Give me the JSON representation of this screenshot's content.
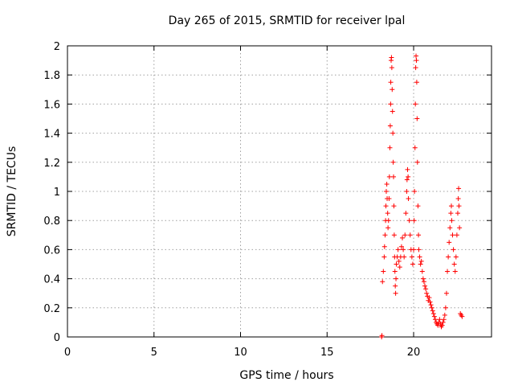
{
  "chart_data": {
    "type": "scatter",
    "title": "Day 265 of 2015, SRMTID for receiver lpal",
    "xlabel": "GPS time / hours",
    "ylabel": "SRMTID / TECUs",
    "xlim": [
      0,
      24.5
    ],
    "ylim": [
      0,
      2
    ],
    "xticks": [
      0,
      5,
      10,
      15,
      20
    ],
    "xtick_labels": [
      "0",
      "5",
      "10",
      "15",
      "20"
    ],
    "yticks": [
      0,
      0.2,
      0.4,
      0.6,
      0.8,
      1,
      1.2,
      1.4,
      1.6,
      1.8,
      2
    ],
    "ytick_labels": [
      "0",
      "0.2",
      "0.4",
      "0.6",
      "0.8",
      "1",
      "1.2",
      "1.4",
      "1.6",
      "1.8",
      "2"
    ],
    "grid": true,
    "marker": "+",
    "series": [
      {
        "name": "SRMTID",
        "color": "#ff0000",
        "points": [
          [
            18.15,
            0.0
          ],
          [
            18.17,
            0.01
          ],
          [
            18.2,
            0.38
          ],
          [
            18.25,
            0.45
          ],
          [
            18.3,
            0.55
          ],
          [
            18.32,
            0.62
          ],
          [
            18.35,
            0.7
          ],
          [
            18.38,
            0.8
          ],
          [
            18.4,
            0.9
          ],
          [
            18.42,
            1.0
          ],
          [
            18.45,
            1.05
          ],
          [
            18.47,
            0.95
          ],
          [
            18.5,
            0.85
          ],
          [
            18.52,
            0.75
          ],
          [
            18.55,
            0.8
          ],
          [
            18.58,
            0.95
          ],
          [
            18.6,
            1.1
          ],
          [
            18.63,
            1.3
          ],
          [
            18.65,
            1.45
          ],
          [
            18.67,
            1.6
          ],
          [
            18.68,
            1.75
          ],
          [
            18.7,
            1.9
          ],
          [
            18.72,
            1.92
          ],
          [
            18.74,
            1.85
          ],
          [
            18.76,
            1.7
          ],
          [
            18.78,
            1.55
          ],
          [
            18.8,
            1.4
          ],
          [
            18.82,
            1.2
          ],
          [
            18.84,
            1.1
          ],
          [
            18.86,
            0.9
          ],
          [
            18.88,
            0.7
          ],
          [
            18.9,
            0.55
          ],
          [
            18.92,
            0.45
          ],
          [
            18.94,
            0.35
          ],
          [
            18.96,
            0.3
          ],
          [
            18.98,
            0.4
          ],
          [
            19.0,
            0.5
          ],
          [
            19.05,
            0.55
          ],
          [
            19.1,
            0.6
          ],
          [
            19.15,
            0.52
          ],
          [
            19.2,
            0.48
          ],
          [
            19.25,
            0.55
          ],
          [
            19.3,
            0.62
          ],
          [
            19.35,
            0.68
          ],
          [
            19.4,
            0.6
          ],
          [
            19.45,
            0.55
          ],
          [
            19.5,
            0.7
          ],
          [
            19.55,
            0.85
          ],
          [
            19.6,
            1.0
          ],
          [
            19.62,
            1.08
          ],
          [
            19.65,
            1.15
          ],
          [
            19.68,
            1.1
          ],
          [
            19.7,
            0.95
          ],
          [
            19.75,
            0.8
          ],
          [
            19.8,
            0.7
          ],
          [
            19.85,
            0.6
          ],
          [
            19.9,
            0.55
          ],
          [
            19.95,
            0.5
          ],
          [
            20.0,
            0.6
          ],
          [
            20.03,
            0.8
          ],
          [
            20.05,
            1.0
          ],
          [
            20.08,
            1.3
          ],
          [
            20.1,
            1.6
          ],
          [
            20.12,
            1.85
          ],
          [
            20.14,
            1.93
          ],
          [
            20.16,
            1.9
          ],
          [
            20.18,
            1.75
          ],
          [
            20.2,
            1.5
          ],
          [
            20.22,
            1.2
          ],
          [
            20.25,
            0.9
          ],
          [
            20.28,
            0.7
          ],
          [
            20.3,
            0.6
          ],
          [
            20.35,
            0.55
          ],
          [
            20.4,
            0.5
          ],
          [
            20.45,
            0.52
          ],
          [
            20.5,
            0.45
          ],
          [
            20.55,
            0.4
          ],
          [
            20.6,
            0.38
          ],
          [
            20.65,
            0.35
          ],
          [
            20.7,
            0.33
          ],
          [
            20.75,
            0.3
          ],
          [
            20.8,
            0.28
          ],
          [
            20.85,
            0.25
          ],
          [
            20.9,
            0.27
          ],
          [
            20.95,
            0.24
          ],
          [
            21.0,
            0.22
          ],
          [
            21.05,
            0.2
          ],
          [
            21.1,
            0.18
          ],
          [
            21.15,
            0.16
          ],
          [
            21.2,
            0.14
          ],
          [
            21.25,
            0.12
          ],
          [
            21.3,
            0.1
          ],
          [
            21.35,
            0.09
          ],
          [
            21.4,
            0.08
          ],
          [
            21.45,
            0.1
          ],
          [
            21.5,
            0.12
          ],
          [
            21.55,
            0.09
          ],
          [
            21.6,
            0.07
          ],
          [
            21.65,
            0.08
          ],
          [
            21.7,
            0.1
          ],
          [
            21.75,
            0.12
          ],
          [
            21.8,
            0.15
          ],
          [
            21.85,
            0.2
          ],
          [
            21.9,
            0.3
          ],
          [
            21.95,
            0.45
          ],
          [
            22.0,
            0.55
          ],
          [
            22.05,
            0.65
          ],
          [
            22.1,
            0.75
          ],
          [
            22.15,
            0.85
          ],
          [
            22.18,
            0.9
          ],
          [
            22.2,
            0.8
          ],
          [
            22.25,
            0.7
          ],
          [
            22.3,
            0.6
          ],
          [
            22.35,
            0.5
          ],
          [
            22.4,
            0.45
          ],
          [
            22.45,
            0.55
          ],
          [
            22.5,
            0.7
          ],
          [
            22.55,
            0.85
          ],
          [
            22.58,
            0.95
          ],
          [
            22.6,
            1.02
          ],
          [
            22.62,
            0.9
          ],
          [
            22.65,
            0.75
          ],
          [
            22.7,
            0.16
          ],
          [
            22.75,
            0.15
          ],
          [
            22.8,
            0.14
          ]
        ]
      }
    ]
  }
}
